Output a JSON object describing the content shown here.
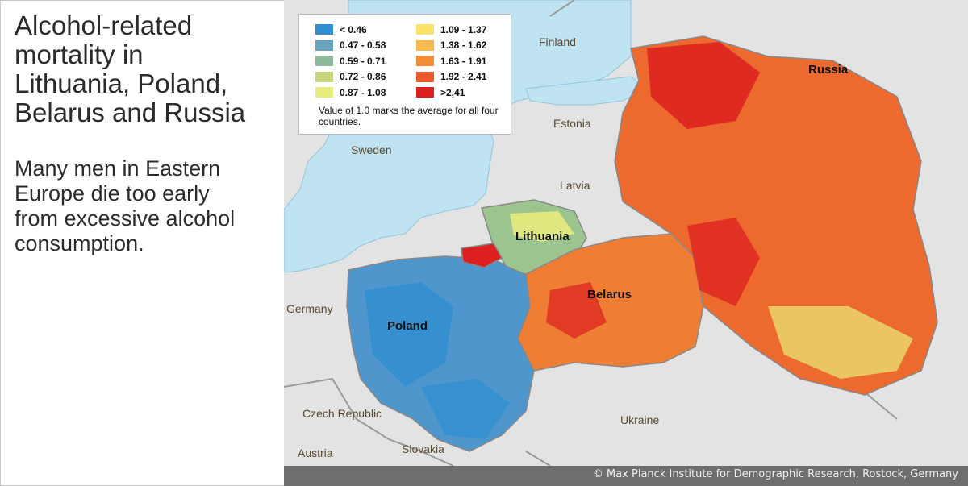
{
  "left_panel": {
    "title": "Alcohol-related\nmortality in\nLithuania, Poland,\nBelarus and Russia",
    "subtitle": "Many men in Eastern\nEurope die too early\nfrom excessive alcohol\nconsumption."
  },
  "legend": {
    "items": [
      {
        "label": "< 0.46",
        "color": "#2f8fd1"
      },
      {
        "label": "0.47 - 0.58",
        "color": "#6aa3bd"
      },
      {
        "label": "0.59 - 0.71",
        "color": "#8dba9c"
      },
      {
        "label": "0.72 - 0.86",
        "color": "#c6d67c"
      },
      {
        "label": "0.87 - 1.08",
        "color": "#e7ec7c"
      },
      {
        "label": "1.09 - 1.37",
        "color": "#fde26a"
      },
      {
        "label": "1.38 - 1.62",
        "color": "#f9b94e"
      },
      {
        "label": "1.63 - 1.91",
        "color": "#f28e36"
      },
      {
        "label": "1.92 - 2.41",
        "color": "#ea5a2a"
      },
      {
        "label": ">2,41",
        "color": "#dc1f1f"
      }
    ],
    "note": "Value of 1.0 marks the average for all four countries."
  },
  "map": {
    "labels": {
      "finland": "Finland",
      "russia": "Russia",
      "estonia": "Estonia",
      "sweden": "Sweden",
      "latvia": "Latvia",
      "lithuania": "Lithuania",
      "germany": "Germany",
      "belarus": "Belarus",
      "poland": "Poland",
      "czech": "Czech Republic",
      "ukraine": "Ukraine",
      "austria": "Austria",
      "slovakia": "Slovakia"
    },
    "colors": {
      "sea": "#bfe3f1",
      "land": "#e3e3e3",
      "border": "#9a9a9a"
    }
  },
  "footer": {
    "copyright": "© Max Planck Institute for Demographic Research, Rostock, Germany"
  }
}
